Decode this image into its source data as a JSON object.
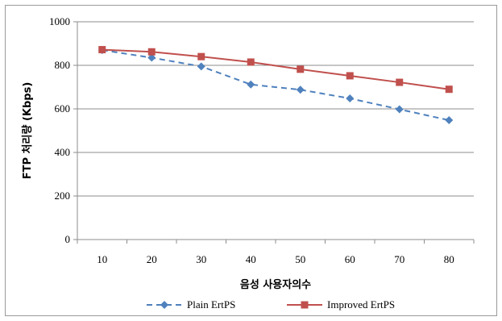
{
  "chart_data": {
    "type": "line",
    "x": [
      10,
      20,
      30,
      40,
      50,
      60,
      70,
      80
    ],
    "categories": [
      "10",
      "20",
      "30",
      "40",
      "50",
      "60",
      "70",
      "80"
    ],
    "series": [
      {
        "name": "Plain ErtPS",
        "values": [
          870,
          835,
          795,
          712,
          688,
          648,
          598,
          548
        ],
        "color": "#4f81bd",
        "marker": "diamond",
        "line_style": "dashed"
      },
      {
        "name": "Improved ErtPS",
        "values": [
          872,
          862,
          840,
          815,
          782,
          752,
          722,
          690
        ],
        "color": "#c0504d",
        "marker": "square",
        "line_style": "solid"
      }
    ],
    "xlabel": "음성 사용자의수",
    "ylabel": "FTP 처리량 (Kbps)",
    "ylim": [
      0,
      1000
    ],
    "yticks": [
      0,
      200,
      400,
      600,
      800,
      1000
    ],
    "grid": true,
    "legend_position": "bottom"
  }
}
